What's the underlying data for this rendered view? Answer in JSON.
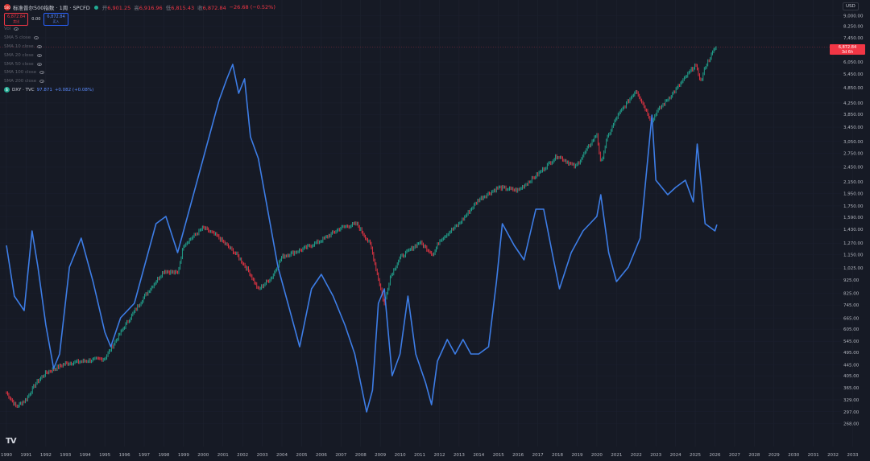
{
  "header": {
    "symbol": "标准普尔500指数 · 1周 · SPCFD",
    "open_label": "开",
    "open": "6,901.25",
    "high_label": "高",
    "high": "6,916.96",
    "low_label": "低",
    "low": "6,815.43",
    "close_label": "收",
    "close": "6,872.84",
    "change": "−26.68 (−0.52%)"
  },
  "buttons": {
    "sell_price": "6,872.84",
    "sell_label": "卖出",
    "spread": "0.00",
    "buy_price": "6,872.84",
    "buy_label": "买入"
  },
  "indicators": [
    "Vol",
    "SMA 5 close",
    "SMA 10 close",
    "SMA 20 close",
    "SMA 50 close",
    "SMA 100 close",
    "SMA 200 close"
  ],
  "compare": {
    "symbol": "DXY · TVC",
    "value": "97.871",
    "change": "+0.082 (+0.08%)"
  },
  "currency": "USD",
  "price_label": {
    "price": "6,872.84",
    "countdown": "3d 6h"
  },
  "colors": {
    "background": "#161a25",
    "dxy_line": "#3d7de6",
    "up": "#22ab94",
    "down": "#f23645"
  },
  "chart_data": {
    "type": "line",
    "log_scale": true,
    "x_ticks": [
      "1990",
      "1991",
      "1992",
      "1993",
      "1994",
      "1995",
      "1996",
      "1997",
      "1998",
      "1999",
      "2000",
      "2001",
      "2002",
      "2003",
      "2004",
      "2005",
      "2006",
      "2007",
      "2008",
      "2009",
      "2010",
      "2011",
      "2012",
      "2013",
      "2014",
      "2015",
      "2016",
      "2017",
      "2018",
      "2019",
      "2020",
      "2021",
      "2022",
      "2023",
      "2024",
      "2025",
      "2026",
      "2027",
      "2028",
      "2029",
      "2030",
      "2031",
      "2032",
      "2033"
    ],
    "y_ticks": [
      "9,000.00",
      "8,250.00",
      "7,450.00",
      "6,850.00",
      "6,050.00",
      "5,450.00",
      "4,850.00",
      "4,250.00",
      "3,850.00",
      "3,450.00",
      "3,050.00",
      "2,750.00",
      "2,450.00",
      "2,150.00",
      "1,950.00",
      "1,750.00",
      "1,590.00",
      "1,430.00",
      "1,270.00",
      "1,150.00",
      "1,025.00",
      "925.00",
      "825.00",
      "745.00",
      "665.00",
      "605.00",
      "545.00",
      "495.00",
      "445.00",
      "405.00",
      "365.00",
      "329.00",
      "297.00",
      "268.00"
    ],
    "series": [
      {
        "name": "标准普尔500指数",
        "x": [
          1990.0,
          1990.5,
          1991.0,
          1991.5,
          1992.0,
          1993.0,
          1994.0,
          1995.0,
          1996.0,
          1997.0,
          1998.0,
          1998.7,
          1999.0,
          2000.0,
          2000.7,
          2001.7,
          2002.3,
          2002.8,
          2003.5,
          2004.0,
          2005.0,
          2006.0,
          2007.0,
          2007.8,
          2008.5,
          2009.2,
          2009.5,
          2010.0,
          2011.0,
          2011.7,
          2012.0,
          2013.0,
          2014.0,
          2015.0,
          2016.0,
          2017.0,
          2018.0,
          2018.9,
          2019.0,
          2020.0,
          2020.2,
          2020.5,
          2021.0,
          2022.0,
          2022.8,
          2023.0,
          2024.0,
          2025.0,
          2025.3,
          2025.5,
          2026.0,
          2026.1
        ],
        "values": [
          350,
          310,
          330,
          380,
          415,
          450,
          460,
          470,
          620,
          800,
          1000,
          980,
          1250,
          1450,
          1350,
          1150,
          1000,
          850,
          950,
          1130,
          1200,
          1300,
          1450,
          1500,
          1250,
          750,
          950,
          1120,
          1280,
          1150,
          1300,
          1500,
          1850,
          2050,
          2000,
          2300,
          2700,
          2450,
          2500,
          3250,
          2500,
          3100,
          3750,
          4750,
          3600,
          3900,
          4750,
          5900,
          5100,
          5800,
          6800,
          6872.84
        ]
      },
      {
        "name": "DXY · TVC",
        "x": [
          1990.0,
          1990.4,
          1990.9,
          1991.3,
          1991.6,
          1992.0,
          1992.4,
          1992.7,
          1993.2,
          1993.8,
          1994.4,
          1995.0,
          1995.3,
          1995.8,
          1996.5,
          1997.0,
          1997.6,
          1998.1,
          1998.7,
          1999.3,
          2000.0,
          2000.8,
          2001.2,
          2001.5,
          2001.8,
          2002.1,
          2002.4,
          2002.8,
          2003.2,
          2003.8,
          2004.3,
          2004.9,
          2005.5,
          2006.0,
          2006.6,
          2007.2,
          2007.7,
          2008.0,
          2008.3,
          2008.6,
          2008.9,
          2009.2,
          2009.6,
          2010.0,
          2010.4,
          2010.8,
          2011.3,
          2011.6,
          2011.9,
          2012.4,
          2012.8,
          2013.2,
          2013.6,
          2014.0,
          2014.5,
          2014.9,
          2015.2,
          2015.8,
          2016.3,
          2016.9,
          2017.3,
          2017.8,
          2018.1,
          2018.7,
          2019.3,
          2020.0,
          2020.2,
          2020.6,
          2021.0,
          2021.6,
          2022.2,
          2022.8,
          2023.0,
          2023.6,
          2024.0,
          2024.5,
          2024.9,
          2025.1,
          2025.5,
          2026.0,
          2026.1
        ],
        "values": [
          95,
          88,
          86,
          97,
          92,
          84,
          78,
          80,
          92,
          96,
          90,
          83,
          81,
          85,
          87,
          92,
          98,
          99,
          94,
          100,
          107,
          115,
          118,
          120,
          116,
          118,
          110,
          107,
          101,
          92,
          87,
          81,
          89,
          91,
          88,
          84,
          80,
          76,
          72,
          75,
          87,
          89,
          77,
          80,
          88,
          80,
          76,
          73,
          79,
          82,
          80,
          82,
          80,
          80,
          81,
          90,
          98,
          95,
          93,
          100,
          100,
          93,
          89,
          94,
          97,
          99,
          102,
          94,
          90,
          92,
          96,
          113,
          104,
          102,
          103,
          104,
          101,
          109,
          98,
          97,
          97.871
        ]
      }
    ]
  }
}
